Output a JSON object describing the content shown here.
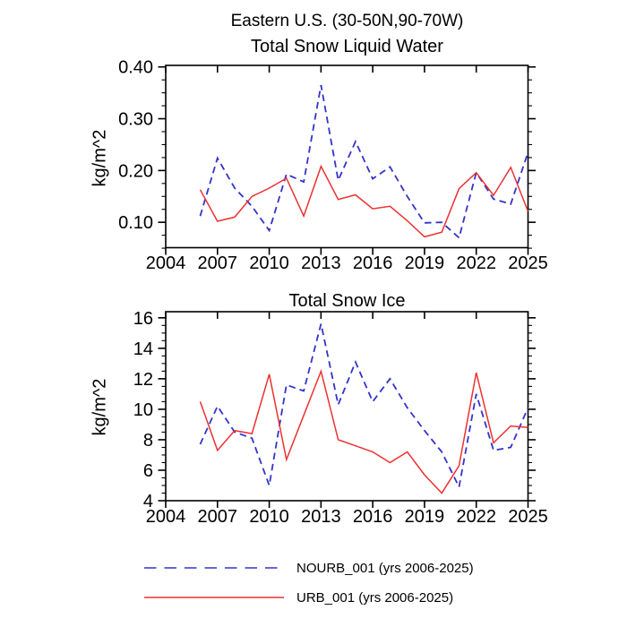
{
  "title": "Eastern U.S. (30-50N,90-70W)",
  "chart_data": [
    {
      "type": "line",
      "title": "Total Snow Liquid Water",
      "ylabel": "kg/m^2",
      "x": [
        2006,
        2007,
        2008,
        2009,
        2010,
        2011,
        2012,
        2013,
        2014,
        2015,
        2016,
        2017,
        2018,
        2019,
        2020,
        2021,
        2022,
        2023,
        2024,
        2025
      ],
      "series": [
        {
          "name": "NOURB_001",
          "style": "dashed",
          "color": "#3333cc",
          "values": [
            0.112,
            0.224,
            0.166,
            0.131,
            0.084,
            0.193,
            0.178,
            0.365,
            0.181,
            0.256,
            0.184,
            0.207,
            0.15,
            0.099,
            0.1,
            0.07,
            0.196,
            0.145,
            0.135,
            0.235
          ]
        },
        {
          "name": "URB_001",
          "style": "solid",
          "color": "#ee3030",
          "values": [
            0.163,
            0.102,
            0.11,
            0.15,
            0.166,
            0.185,
            0.112,
            0.208,
            0.144,
            0.153,
            0.126,
            0.131,
            0.103,
            0.072,
            0.081,
            0.165,
            0.196,
            0.152,
            0.206,
            0.121
          ]
        }
      ],
      "xlim": [
        2004,
        2025
      ],
      "ylim": [
        0.051,
        0.403
      ],
      "xticks": [
        2004,
        2007,
        2010,
        2013,
        2016,
        2019,
        2022,
        2025
      ],
      "yticks": [
        0.1,
        0.2,
        0.3,
        0.4
      ],
      "ytick_decimals": 2,
      "yminor_step": 0.025,
      "grid": false
    },
    {
      "type": "line",
      "title": "Total Snow Ice",
      "ylabel": "kg/m^2",
      "x": [
        2006,
        2007,
        2008,
        2009,
        2010,
        2011,
        2012,
        2013,
        2014,
        2015,
        2016,
        2017,
        2018,
        2019,
        2020,
        2021,
        2022,
        2023,
        2024,
        2025
      ],
      "series": [
        {
          "name": "NOURB_001",
          "style": "dashed",
          "color": "#3333cc",
          "values": [
            7.7,
            10.2,
            8.5,
            8.1,
            5.0,
            11.6,
            11.2,
            15.6,
            10.3,
            13.1,
            10.5,
            12.0,
            10.1,
            8.6,
            7.2,
            4.9,
            11.0,
            7.3,
            7.5,
            10.1
          ]
        },
        {
          "name": "URB_001",
          "style": "solid",
          "color": "#ee3030",
          "values": [
            10.5,
            7.3,
            8.6,
            8.4,
            12.3,
            6.7,
            9.6,
            12.5,
            8.0,
            7.6,
            7.2,
            6.5,
            7.2,
            5.7,
            4.5,
            6.3,
            12.4,
            7.8,
            8.9,
            8.8
          ]
        }
      ],
      "xlim": [
        2004,
        2025
      ],
      "ylim": [
        4,
        16.4
      ],
      "xticks": [
        2004,
        2007,
        2010,
        2013,
        2016,
        2019,
        2022,
        2025
      ],
      "yticks": [
        4,
        6,
        8,
        10,
        12,
        14,
        16
      ],
      "ytick_decimals": 0,
      "yminor_step": 0.5,
      "grid": false
    }
  ],
  "legend": {
    "items": [
      {
        "label": "NOURB_001 (yrs 2006-2025)",
        "style": "dashed",
        "color": "#3333cc"
      },
      {
        "label": "URB_001 (yrs 2006-2025)",
        "style": "solid",
        "color": "#ee3030"
      }
    ]
  },
  "axis_color": "#000000"
}
